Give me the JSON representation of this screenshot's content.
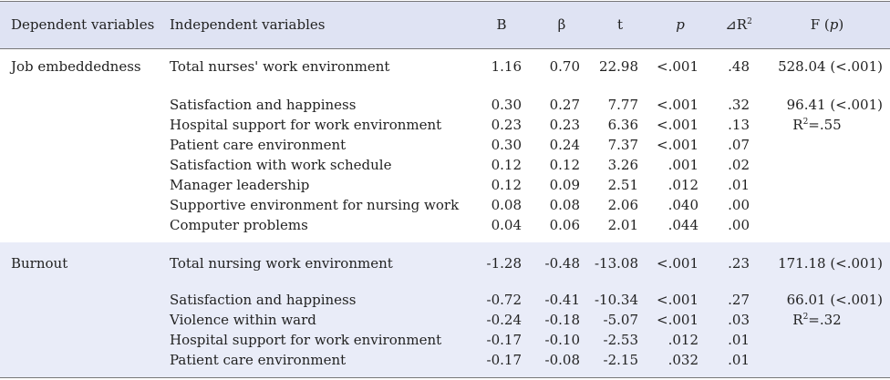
{
  "headers": {
    "dependent": "Dependent variables",
    "independent": "Independent variables",
    "b": "B",
    "beta": "β",
    "t": "t",
    "p": "p",
    "dr2_prefix": "⊿R",
    "dr2_sup": "2",
    "f_prefix": "F (",
    "f_p": "p",
    "f_suffix": ")"
  },
  "groups": [
    {
      "dependent": "Job embeddedness",
      "total": {
        "name": "Total nurses' work environment",
        "B": "1.16",
        "beta": "0.70",
        "t": "22.98",
        "p": "<.001",
        "dr2": ".48",
        "F": "528.04 (<.001)"
      },
      "rows": [
        {
          "name": "Satisfaction and happiness",
          "B": "0.30",
          "beta": "0.27",
          "t": "7.77",
          "p": "<.001",
          "dr2": ".32"
        },
        {
          "name": "Hospital support for work environment",
          "B": "0.23",
          "beta": "0.23",
          "t": "6.36",
          "p": "<.001",
          "dr2": ".13"
        },
        {
          "name": "Patient care environment",
          "B": "0.30",
          "beta": "0.24",
          "t": "7.37",
          "p": "<.001",
          "dr2": ".07"
        },
        {
          "name": "Satisfaction with work schedule",
          "B": "0.12",
          "beta": "0.12",
          "t": "3.26",
          "p": ".001",
          "dr2": ".02"
        },
        {
          "name": "Manager leadership",
          "B": "0.12",
          "beta": "0.09",
          "t": "2.51",
          "p": ".012",
          "dr2": ".01"
        },
        {
          "name": "Supportive environment for nursing work",
          "B": "0.08",
          "beta": "0.08",
          "t": "2.06",
          "p": ".040",
          "dr2": ".00"
        },
        {
          "name": "Computer problems",
          "B": "0.04",
          "beta": "0.06",
          "t": "2.01",
          "p": ".044",
          "dr2": ".00"
        }
      ],
      "model_F": "96.41 (<.001)",
      "r2_prefix": "R",
      "r2_sup": "2",
      "r2_value": "=.55"
    },
    {
      "dependent": "Burnout",
      "total": {
        "name": "Total nursing work environment",
        "B": "-1.28",
        "beta": "-0.48",
        "t": "-13.08",
        "p": "<.001",
        "dr2": ".23",
        "F": "171.18 (<.001)"
      },
      "rows": [
        {
          "name": "Satisfaction and happiness",
          "B": "-0.72",
          "beta": "-0.41",
          "t": "-10.34",
          "p": "<.001",
          "dr2": ".27"
        },
        {
          "name": "Violence within ward",
          "B": "-0.24",
          "beta": "-0.18",
          "t": "-5.07",
          "p": "<.001",
          "dr2": ".03"
        },
        {
          "name": "Hospital support for work environment",
          "B": "-0.17",
          "beta": "-0.10",
          "t": "-2.53",
          "p": ".012",
          "dr2": ".01"
        },
        {
          "name": "Patient care environment",
          "B": "-0.17",
          "beta": "-0.08",
          "t": "-2.15",
          "p": ".032",
          "dr2": ".01"
        }
      ],
      "model_F": "66.01 (<.001)",
      "r2_prefix": "R",
      "r2_sup": "2",
      "r2_value": "=.32"
    }
  ]
}
